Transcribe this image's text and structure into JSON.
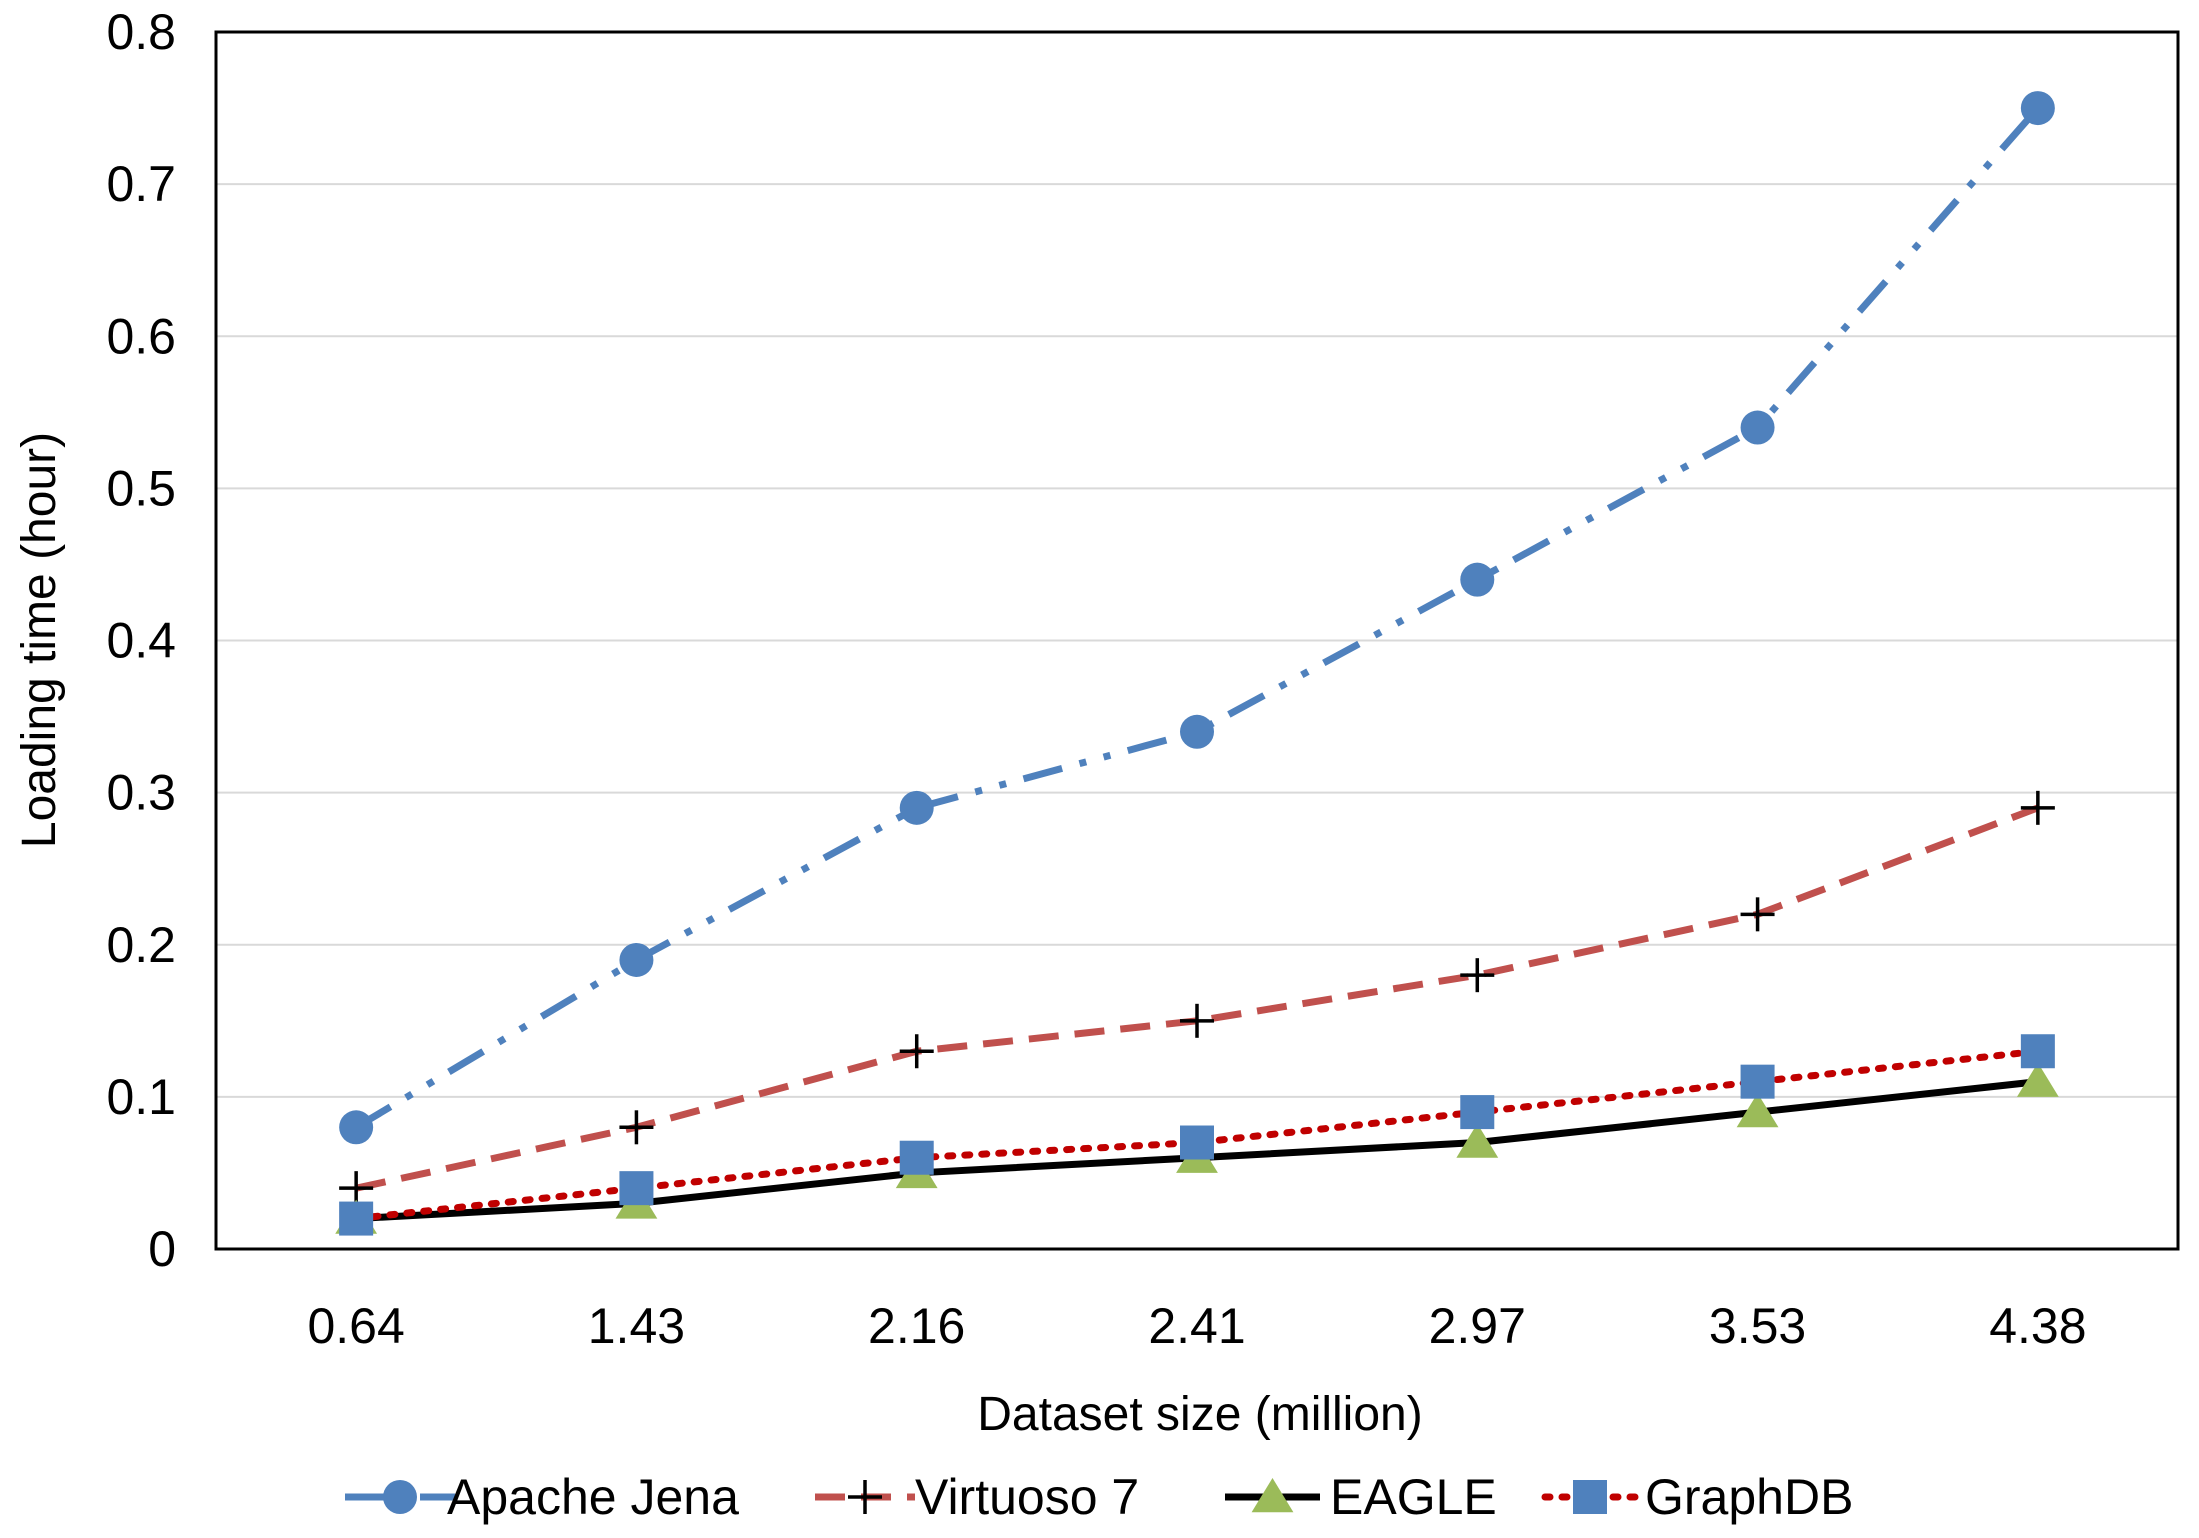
{
  "chart_data": {
    "type": "line",
    "title": "",
    "xlabel": "Dataset size (million)",
    "ylabel": "Loading time (hour)",
    "categories": [
      "0.64",
      "1.43",
      "2.16",
      "2.41",
      "2.97",
      "3.53",
      "4.38"
    ],
    "ylim": [
      0,
      0.8
    ],
    "yticks": [
      "0",
      "0.1",
      "0.2",
      "0.3",
      "0.4",
      "0.5",
      "0.6",
      "0.7",
      "0.8"
    ],
    "grid": true,
    "legend_position": "bottom",
    "series": [
      {
        "name": "Apache Jena",
        "values": [
          0.08,
          0.19,
          0.29,
          0.34,
          0.44,
          0.54,
          0.75
        ],
        "color": "#4f81bd",
        "marker": "circle",
        "dash": "long-dash-dot-dot"
      },
      {
        "name": "Virtuoso 7",
        "values": [
          0.04,
          0.08,
          0.13,
          0.15,
          0.18,
          0.22,
          0.29
        ],
        "color": "#c0504d",
        "marker": "plus",
        "dash": "dash"
      },
      {
        "name": "EAGLE",
        "values": [
          0.02,
          0.03,
          0.05,
          0.06,
          0.07,
          0.09,
          0.11
        ],
        "color": "#000000",
        "marker": "triangle",
        "marker_color": "#9bbb59",
        "dash": "solid"
      },
      {
        "name": "GraphDB",
        "values": [
          0.02,
          0.04,
          0.06,
          0.07,
          0.09,
          0.11,
          0.13
        ],
        "color": "#c00000",
        "marker": "square",
        "marker_color": "#4f81bd",
        "dash": "dot"
      }
    ]
  }
}
